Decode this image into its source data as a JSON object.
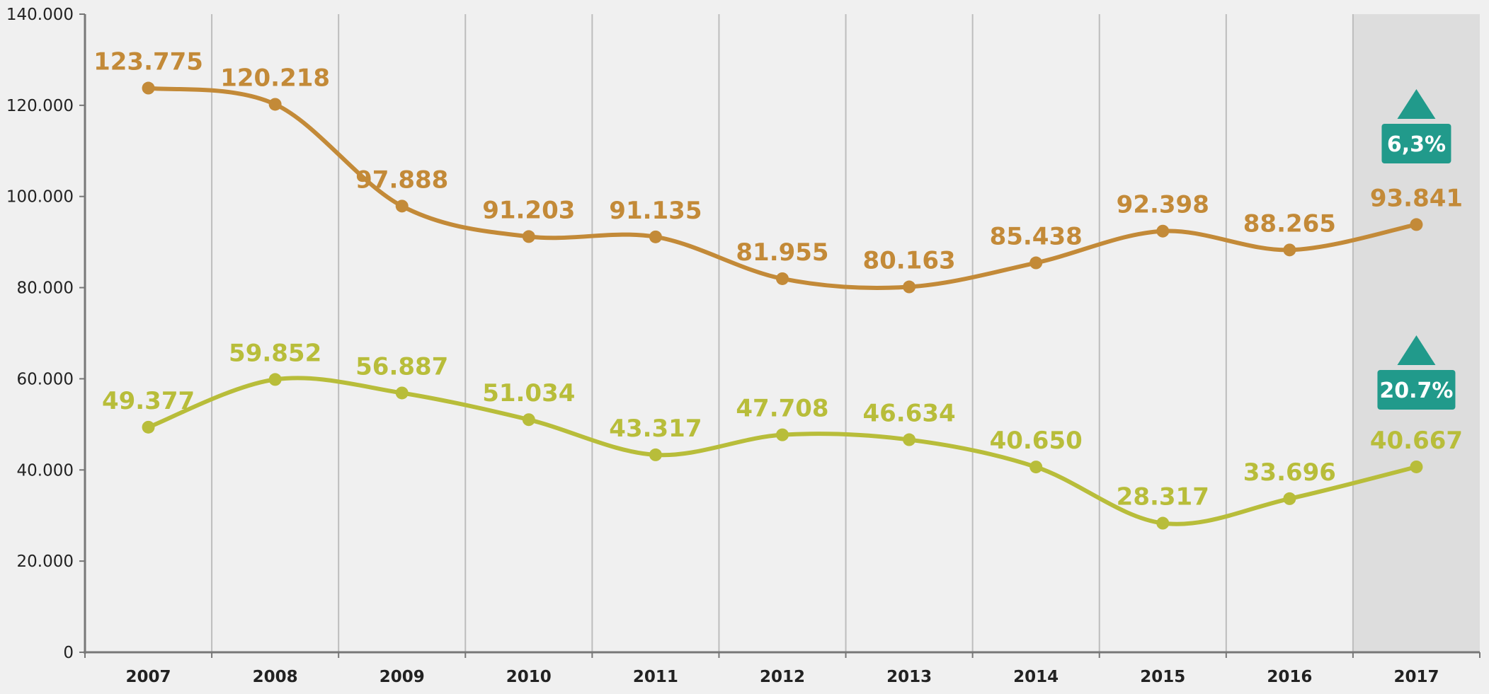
{
  "chart_data": {
    "type": "line",
    "title": "",
    "xlabel": "",
    "ylabel": "",
    "categories": [
      "2007",
      "2008",
      "2009",
      "2010",
      "2011",
      "2012",
      "2013",
      "2014",
      "2015",
      "2016",
      "2017"
    ],
    "ylim": [
      0,
      140000
    ],
    "y_ticks": [
      0,
      20000,
      40000,
      60000,
      80000,
      100000,
      120000,
      140000
    ],
    "y_tick_labels": [
      "0",
      "20.000",
      "40.000",
      "60.000",
      "80.000",
      "100.000",
      "120.000",
      "140.000"
    ],
    "grid": "vertical",
    "highlighted_category": "2017",
    "series": [
      {
        "name": "series-upper",
        "color": "#c38a38",
        "values": [
          123775,
          120218,
          97888,
          91203,
          91135,
          81955,
          80163,
          85438,
          92398,
          88265,
          93841
        ],
        "labels": [
          "123.775",
          "120.218",
          "97.888",
          "91.203",
          "91.135",
          "81.955",
          "80.163",
          "85.438",
          "92.398",
          "88.265",
          "93.841"
        ],
        "change_badge": {
          "text": "6,3%",
          "direction": "up",
          "color": "#219a8b"
        }
      },
      {
        "name": "series-lower",
        "color": "#b8bd3a",
        "values": [
          49377,
          59852,
          56887,
          51034,
          43317,
          47708,
          46634,
          40650,
          28317,
          33696,
          40667
        ],
        "labels": [
          "49.377",
          "59.852",
          "56.887",
          "51.034",
          "43.317",
          "47.708",
          "46.634",
          "40.650",
          "28.317",
          "33.696",
          "40.667"
        ],
        "change_badge": {
          "text": "20.7%",
          "direction": "up",
          "color": "#219a8b"
        }
      }
    ]
  },
  "colors": {
    "background": "#f0f0f0",
    "highlight_band": "#dddddd",
    "grid": "#bdbdbd",
    "axis": "#777777"
  }
}
